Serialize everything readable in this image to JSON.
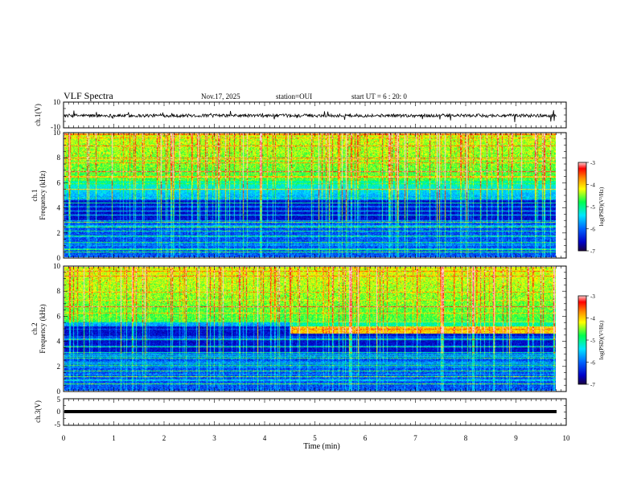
{
  "header": {
    "title": "VLF Spectra",
    "date": "Nov.17, 2025",
    "station": "station=OUI",
    "start_time": "start  UT =  6 : 20: 0"
  },
  "colors": {
    "colormap": [
      "#1a0040",
      "#0000c8",
      "#0064ff",
      "#00e6ff",
      "#00ff50",
      "#ffff00",
      "#ff8c00",
      "#ff0000",
      "#ffd0d0"
    ]
  },
  "chart_data": [
    {
      "type": "line",
      "panel": "ch1-waveform",
      "ylabel": "ch.1(V)",
      "ylim": [
        -10,
        10
      ],
      "yticks": [
        "10",
        "-10"
      ],
      "xlim": [
        0,
        10
      ],
      "description_values": {
        "baseline": -0.5,
        "noise_amplitude": 2.5
      }
    },
    {
      "type": "heatmap",
      "panel": "ch1-spectrogram",
      "ylabel_line1": "ch.1",
      "ylabel_line2": "Frequency (kHz)",
      "ylim": [
        0,
        10
      ],
      "yticks": [
        "0",
        "2",
        "4",
        "6",
        "8",
        "10"
      ],
      "xlim": [
        0,
        9.8
      ],
      "colorbar": {
        "label": "log(PSD)(V²/Hz)",
        "range": [
          -7,
          -3
        ],
        "ticks": [
          "-3",
          "-4",
          "-5",
          "-6",
          "-7"
        ]
      },
      "features": {
        "quiet_band_khz": [
          3.0,
          4.6
        ],
        "hiss_floor_khz": 6.2,
        "lines_khz": [
          0.4,
          0.6,
          1.2,
          1.7,
          2.1,
          2.4,
          2.8,
          3.4,
          3.7,
          4.4,
          5.5,
          6.9
        ]
      }
    },
    {
      "type": "heatmap",
      "panel": "ch2-spectrogram",
      "ylabel_line1": "ch.2",
      "ylabel_line2": "Frequency (kHz)",
      "ylim": [
        0,
        10
      ],
      "yticks": [
        "0",
        "2",
        "4",
        "6",
        "8",
        "10"
      ],
      "xlim": [
        0,
        9.8
      ],
      "colorbar": {
        "label": "log(PSD)(V²/Hz)",
        "range": [
          -7,
          -3
        ],
        "ticks": [
          "-3",
          "-4",
          "-5",
          "-6",
          "-7"
        ]
      },
      "features": {
        "quiet_band_khz": [
          3.0,
          5.2
        ],
        "hiss_floor_khz": 5.6,
        "emission_band_khz": 4.9,
        "emission_start_min": 4.5,
        "lines_khz": [
          0.5,
          1.1,
          1.6,
          2.0,
          2.6,
          3.1,
          3.5,
          4.1,
          6.8
        ]
      }
    },
    {
      "type": "line",
      "panel": "ch3-waveform",
      "ylabel": "ch.3(V)",
      "ylim": [
        -5,
        5
      ],
      "yticks": [
        "5",
        "0",
        "-5"
      ],
      "xlim": [
        0,
        10
      ],
      "xlabel": "Time (min)",
      "xticks": [
        "0",
        "1",
        "2",
        "3",
        "4",
        "5",
        "6",
        "7",
        "8",
        "9",
        "10"
      ],
      "description_values": {
        "baseline": 0
      }
    }
  ]
}
